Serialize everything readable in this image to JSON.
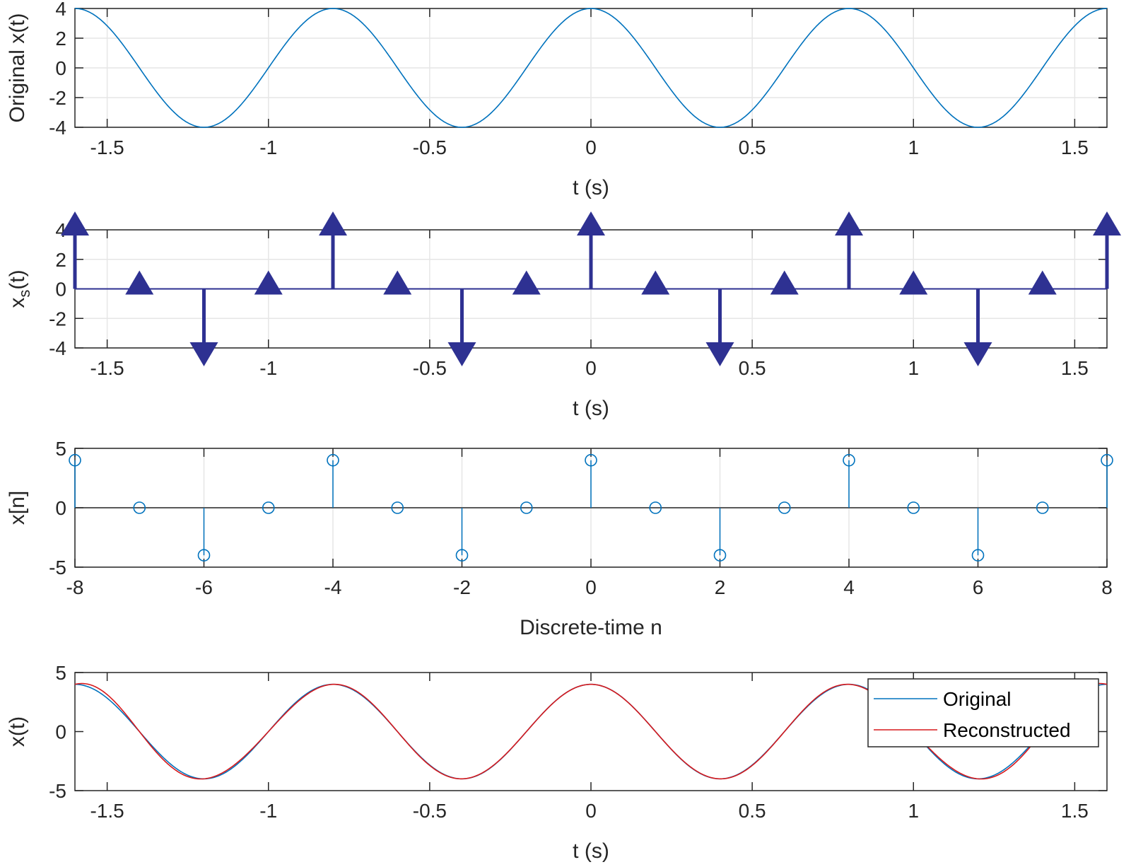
{
  "chart_data": [
    {
      "type": "line",
      "xlabel": "t (s)",
      "ylabel": "Original x(t)",
      "xlim": [
        -1.6,
        1.6
      ],
      "ylim": [
        -4,
        4
      ],
      "xticks": [
        -1.5,
        -1,
        -0.5,
        0,
        0.5,
        1,
        1.5
      ],
      "xtick_labels": [
        "-1.5",
        "-1",
        "-0.5",
        "0",
        "0.5",
        "1",
        "1.5"
      ],
      "yticks": [
        -4,
        -2,
        0,
        2,
        4
      ],
      "ytick_labels": [
        "-4",
        "-2",
        "0",
        "2",
        "4"
      ],
      "grid": true,
      "series": [
        {
          "amplitude": 4,
          "frequency_hz": 1.25,
          "form": "cosine",
          "color": "#0072BD"
        }
      ]
    },
    {
      "type": "stem",
      "xlabel": "t (s)",
      "ylabel": "x",
      "ylabel_subscript": "s",
      "ylabel_suffix": "(t)",
      "xlim": [
        -1.6,
        1.6
      ],
      "ylim": [
        -4,
        4
      ],
      "xticks": [
        -1.5,
        -1,
        -0.5,
        0,
        0.5,
        1,
        1.5
      ],
      "xtick_labels": [
        "-1.5",
        "-1",
        "-0.5",
        "0",
        "0.5",
        "1",
        "1.5"
      ],
      "yticks": [
        -4,
        -2,
        0,
        2,
        4
      ],
      "ytick_labels": [
        "-4",
        "-2",
        "0",
        "2",
        "4"
      ],
      "grid": true,
      "marker": "triangle",
      "color": "#2E3192",
      "x": [
        -1.6,
        -1.4,
        -1.2,
        -1.0,
        -0.8,
        -0.6,
        -0.4,
        -0.2,
        0.0,
        0.2,
        0.4,
        0.6,
        0.8,
        1.0,
        1.2,
        1.4,
        1.6
      ],
      "y": [
        4,
        0,
        -4,
        0,
        4,
        0,
        -4,
        0,
        4,
        0,
        -4,
        0,
        4,
        0,
        -4,
        0,
        4
      ]
    },
    {
      "type": "stem",
      "xlabel": "Discrete-time n",
      "ylabel": "x[n]",
      "xlim": [
        -8,
        8
      ],
      "ylim": [
        -5,
        5
      ],
      "xticks": [
        -8,
        -6,
        -4,
        -2,
        0,
        2,
        4,
        6,
        8
      ],
      "xtick_labels": [
        "-8",
        "-6",
        "-4",
        "-2",
        "0",
        "2",
        "4",
        "6",
        "8"
      ],
      "yticks": [
        -5,
        0,
        5
      ],
      "ytick_labels": [
        "-5",
        "0",
        "5"
      ],
      "grid": true,
      "marker": "circle",
      "color": "#0072BD",
      "x": [
        -8,
        -7,
        -6,
        -5,
        -4,
        -3,
        -2,
        -1,
        0,
        1,
        2,
        3,
        4,
        5,
        6,
        7,
        8
      ],
      "y": [
        4,
        0,
        -4,
        0,
        4,
        0,
        -4,
        0,
        4,
        0,
        -4,
        0,
        4,
        0,
        -4,
        0,
        4
      ]
    },
    {
      "type": "line",
      "xlabel": "t (s)",
      "ylabel": "x(t)",
      "xlim": [
        -1.6,
        1.6
      ],
      "ylim": [
        -5,
        5
      ],
      "xticks": [
        -1.5,
        -1,
        -0.5,
        0,
        0.5,
        1,
        1.5
      ],
      "xtick_labels": [
        "-1.5",
        "-1",
        "-0.5",
        "0",
        "0.5",
        "1",
        "1.5"
      ],
      "yticks": [
        -5,
        0,
        5
      ],
      "ytick_labels": [
        "-5",
        "0",
        "5"
      ],
      "grid": false,
      "legend_position": "top-right",
      "series": [
        {
          "name": "Original",
          "amplitude": 4,
          "frequency_hz": 1.25,
          "form": "cosine",
          "color": "#0072BD"
        },
        {
          "name": "Reconstructed",
          "samples_x": [
            -1.6,
            -1.4,
            -1.2,
            -1.0,
            -0.8,
            -0.6,
            -0.4,
            -0.2,
            0.0,
            0.2,
            0.4,
            0.6,
            0.8,
            1.0,
            1.2,
            1.4,
            1.6
          ],
          "samples_y": [
            4,
            0,
            -4,
            0,
            4,
            0,
            -4,
            0,
            4,
            0,
            -4,
            0,
            4,
            0,
            -4,
            0,
            4
          ],
          "sample_period_s": 0.2,
          "method": "sinc interpolation",
          "color": "#D7191C"
        }
      ]
    }
  ]
}
